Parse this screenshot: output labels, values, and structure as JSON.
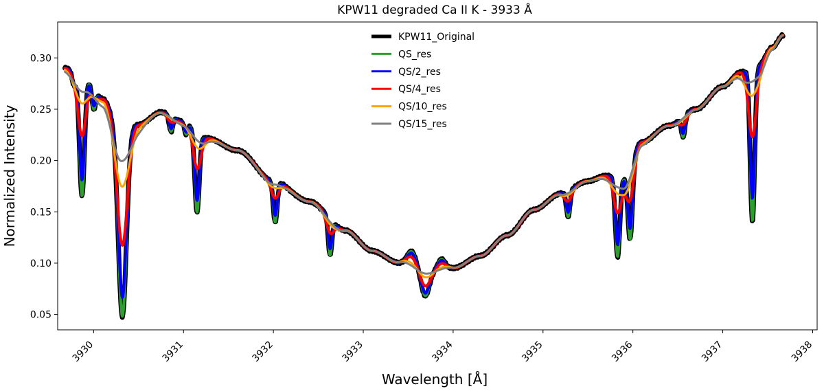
{
  "chart_data": {
    "type": "line",
    "title": "KPW11 degraded Ca II K - 3933 Å",
    "xlabel": "Wavelength [Å]",
    "ylabel": "Normalized Intensity",
    "xlim": [
      3929.6,
      3938.05
    ],
    "ylim": [
      0.035,
      0.335
    ],
    "xticks": [
      3930,
      3931,
      3932,
      3933,
      3934,
      3935,
      3936,
      3937,
      3938
    ],
    "yticks": [
      0.05,
      0.1,
      0.15,
      0.2,
      0.25,
      0.3
    ],
    "ytick_labels": [
      "0.05",
      "0.10",
      "0.15",
      "0.20",
      "0.25",
      "0.30"
    ],
    "legend_position": "top-center",
    "continuum": {
      "x": [
        3929.68,
        3929.9,
        3930.1,
        3930.3,
        3930.5,
        3930.75,
        3931.0,
        3931.25,
        3931.6,
        3932.0,
        3932.4,
        3932.8,
        3933.1,
        3933.4,
        3933.7,
        3934.0,
        3934.3,
        3934.6,
        3934.9,
        3935.2,
        3935.5,
        3935.7,
        3935.9,
        3936.1,
        3936.4,
        3936.7,
        3937.0,
        3937.2,
        3937.4,
        3937.55,
        3937.67
      ],
      "y": [
        0.29,
        0.28,
        0.26,
        0.228,
        0.235,
        0.247,
        0.238,
        0.222,
        0.21,
        0.18,
        0.16,
        0.132,
        0.112,
        0.1,
        0.092,
        0.095,
        0.107,
        0.127,
        0.152,
        0.168,
        0.18,
        0.185,
        0.184,
        0.218,
        0.234,
        0.25,
        0.272,
        0.286,
        0.293,
        0.31,
        0.322
      ]
    },
    "lines": [
      {
        "center": 3929.78,
        "depth": 0.012,
        "width": 0.02
      },
      {
        "center": 3929.87,
        "depth": 0.115,
        "width": 0.028
      },
      {
        "center": 3930.0,
        "depth": 0.02,
        "width": 0.02
      },
      {
        "center": 3930.32,
        "depth": 0.18,
        "width": 0.045
      },
      {
        "center": 3930.86,
        "depth": 0.015,
        "width": 0.02
      },
      {
        "center": 3931.03,
        "depth": 0.012,
        "width": 0.02
      },
      {
        "center": 3931.15,
        "depth": 0.078,
        "width": 0.025
      },
      {
        "center": 3932.02,
        "depth": 0.04,
        "width": 0.022
      },
      {
        "center": 3932.63,
        "depth": 0.035,
        "width": 0.02
      },
      {
        "center": 3933.54,
        "depth": -0.015,
        "width": 0.05
      },
      {
        "center": 3933.69,
        "depth": 0.024,
        "width": 0.045
      },
      {
        "center": 3933.87,
        "depth": -0.01,
        "width": 0.04
      },
      {
        "center": 3935.28,
        "depth": 0.025,
        "width": 0.02
      },
      {
        "center": 3935.83,
        "depth": 0.078,
        "width": 0.025
      },
      {
        "center": 3935.97,
        "depth": 0.07,
        "width": 0.025
      },
      {
        "center": 3936.56,
        "depth": 0.02,
        "width": 0.02
      },
      {
        "center": 3937.33,
        "depth": 0.15,
        "width": 0.025
      }
    ],
    "series": [
      {
        "name": "KPW11_Original",
        "color": "#000000",
        "smoothing": 0.0,
        "line_scale": 1.0
      },
      {
        "name": "QS_res",
        "color": "#2ca02c",
        "smoothing": 0.0,
        "line_scale": 1.0
      },
      {
        "name": "QS/2_res",
        "color": "#0000ff",
        "smoothing": 0.01,
        "line_scale": 0.92
      },
      {
        "name": "QS/4_res",
        "color": "#ff0000",
        "smoothing": 0.035,
        "line_scale": 0.78
      },
      {
        "name": "QS/10_res",
        "color": "#ffa500",
        "smoothing": 0.07,
        "line_scale": 0.55
      },
      {
        "name": "QS/15_res",
        "color": "#808080",
        "smoothing": 0.11,
        "line_scale": 0.42
      }
    ]
  }
}
